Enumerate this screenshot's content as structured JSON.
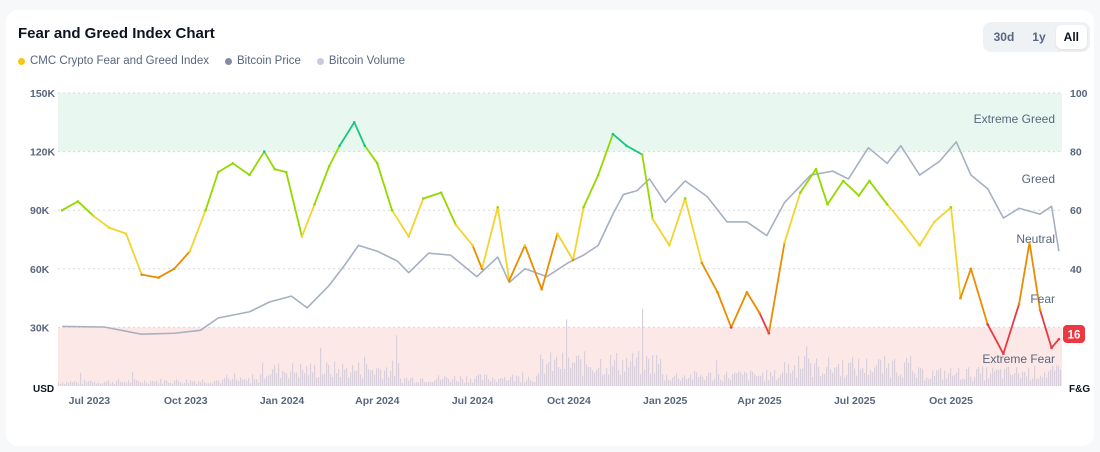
{
  "header": {
    "title": "Fear and Greed Index Chart"
  },
  "legend": [
    {
      "label": "CMC Crypto Fear and Greed Index",
      "color": "#f5c518"
    },
    {
      "label": "Bitcoin Price",
      "color": "#858ca2"
    },
    {
      "label": "Bitcoin Volume",
      "color": "#c7cbe0"
    }
  ],
  "range_buttons": [
    {
      "label": "30d",
      "active": false
    },
    {
      "label": "1y",
      "active": false
    },
    {
      "label": "All",
      "active": true
    }
  ],
  "colors": {
    "extreme_greed_band": "#e8f8f1",
    "extreme_fear_band": "#fde8e8",
    "extreme_fear": "#ea3943",
    "fear": "#ea8c00",
    "neutral": "#f3d42f",
    "greed": "#93d900",
    "extreme_greed": "#16c784",
    "price_line": "#a6b0c3",
    "volume": "#d9d0dc",
    "badge": "#ea3943"
  },
  "chart_data": {
    "type": "line",
    "title": "Fear and Greed Index Chart",
    "x_ticks": [
      "Jul 2023",
      "Oct 2023",
      "Jan 2024",
      "Apr 2024",
      "Jul 2024",
      "Oct 2024",
      "Jan 2025",
      "Apr 2025",
      "Jul 2025",
      "Oct 2025"
    ],
    "x_range": [
      "2023-06",
      "2026-01"
    ],
    "left_axis": {
      "unit_label": "USD",
      "ticks": [
        "150K",
        "120K",
        "90K",
        "60K",
        "30K"
      ],
      "range": [
        0,
        150000
      ]
    },
    "right_axis": {
      "unit_label": "F&G",
      "ticks": [
        "100",
        "80",
        "60",
        "40"
      ],
      "range": [
        0,
        100
      ]
    },
    "zones": [
      {
        "label": "Extreme Greed",
        "from": 80,
        "to": 100
      },
      {
        "label": "Greed",
        "value": 70
      },
      {
        "label": "Neutral",
        "value": 50
      },
      {
        "label": "Fear",
        "value": 30
      },
      {
        "label": "Extreme Fear",
        "from": 0,
        "to": 20
      }
    ],
    "grid": true,
    "current_value": "16",
    "series": [
      {
        "name": "CMC Crypto Fear and Greed Index",
        "axis": "right",
        "points": [
          [
            "2023-06-05",
            60
          ],
          [
            "2023-06-20",
            63
          ],
          [
            "2023-07-05",
            58
          ],
          [
            "2023-07-20",
            54
          ],
          [
            "2023-08-05",
            52
          ],
          [
            "2023-08-20",
            38
          ],
          [
            "2023-09-05",
            37
          ],
          [
            "2023-09-20",
            40
          ],
          [
            "2023-10-05",
            46
          ],
          [
            "2023-10-20",
            60
          ],
          [
            "2023-11-01",
            73
          ],
          [
            "2023-11-15",
            76
          ],
          [
            "2023-12-01",
            72
          ],
          [
            "2023-12-15",
            80
          ],
          [
            "2023-12-25",
            74
          ],
          [
            "2024-01-05",
            73
          ],
          [
            "2024-01-20",
            51
          ],
          [
            "2024-02-01",
            62
          ],
          [
            "2024-02-15",
            75
          ],
          [
            "2024-02-25",
            82
          ],
          [
            "2024-03-10",
            90
          ],
          [
            "2024-03-20",
            82
          ],
          [
            "2024-04-01",
            76
          ],
          [
            "2024-04-15",
            60
          ],
          [
            "2024-05-01",
            51
          ],
          [
            "2024-05-15",
            64
          ],
          [
            "2024-06-01",
            66
          ],
          [
            "2024-06-15",
            55
          ],
          [
            "2024-07-01",
            48
          ],
          [
            "2024-07-10",
            40
          ],
          [
            "2024-07-25",
            61
          ],
          [
            "2024-08-05",
            36
          ],
          [
            "2024-08-20",
            48
          ],
          [
            "2024-09-05",
            33
          ],
          [
            "2024-09-20",
            52
          ],
          [
            "2024-10-05",
            43
          ],
          [
            "2024-10-15",
            61
          ],
          [
            "2024-10-29",
            72
          ],
          [
            "2024-11-12",
            86
          ],
          [
            "2024-11-25",
            82
          ],
          [
            "2024-12-10",
            79
          ],
          [
            "2024-12-20",
            57
          ],
          [
            "2025-01-05",
            48
          ],
          [
            "2025-01-20",
            64
          ],
          [
            "2025-02-05",
            42
          ],
          [
            "2025-02-20",
            32
          ],
          [
            "2025-03-05",
            20
          ],
          [
            "2025-03-20",
            32
          ],
          [
            "2025-04-01",
            25
          ],
          [
            "2025-04-10",
            18
          ],
          [
            "2025-04-25",
            49
          ],
          [
            "2025-05-10",
            66
          ],
          [
            "2025-05-25",
            74
          ],
          [
            "2025-06-05",
            62
          ],
          [
            "2025-06-20",
            70
          ],
          [
            "2025-07-05",
            65
          ],
          [
            "2025-07-15",
            70
          ],
          [
            "2025-08-01",
            62
          ],
          [
            "2025-08-15",
            56
          ],
          [
            "2025-09-01",
            48
          ],
          [
            "2025-09-15",
            56
          ],
          [
            "2025-10-01",
            61
          ],
          [
            "2025-10-10",
            30
          ],
          [
            "2025-10-20",
            40
          ],
          [
            "2025-11-05",
            21
          ],
          [
            "2025-11-20",
            11
          ],
          [
            "2025-12-05",
            28
          ],
          [
            "2025-12-15",
            49
          ],
          [
            "2025-12-25",
            26
          ],
          [
            "2026-01-05",
            13
          ],
          [
            "2026-01-12",
            16
          ]
        ]
      },
      {
        "name": "Bitcoin Price",
        "axis": "left",
        "points": [
          [
            "2023-06-05",
            30500
          ],
          [
            "2023-07-15",
            30200
          ],
          [
            "2023-08-20",
            26500
          ],
          [
            "2023-09-20",
            27000
          ],
          [
            "2023-10-15",
            28500
          ],
          [
            "2023-11-01",
            34800
          ],
          [
            "2023-12-01",
            38000
          ],
          [
            "2023-12-20",
            43000
          ],
          [
            "2024-01-10",
            46000
          ],
          [
            "2024-01-25",
            40000
          ],
          [
            "2024-02-15",
            51500
          ],
          [
            "2024-03-01",
            62000
          ],
          [
            "2024-03-14",
            72000
          ],
          [
            "2024-04-01",
            69000
          ],
          [
            "2024-04-20",
            64000
          ],
          [
            "2024-05-01",
            58000
          ],
          [
            "2024-05-20",
            68000
          ],
          [
            "2024-06-10",
            67000
          ],
          [
            "2024-07-05",
            56000
          ],
          [
            "2024-07-25",
            66000
          ],
          [
            "2024-08-05",
            53000
          ],
          [
            "2024-08-20",
            60000
          ],
          [
            "2024-09-10",
            56000
          ],
          [
            "2024-09-30",
            63000
          ],
          [
            "2024-10-15",
            67000
          ],
          [
            "2024-10-29",
            72000
          ],
          [
            "2024-11-12",
            88000
          ],
          [
            "2024-11-22",
            98000
          ],
          [
            "2024-12-05",
            100000
          ],
          [
            "2024-12-17",
            106000
          ],
          [
            "2025-01-01",
            94000
          ],
          [
            "2025-01-20",
            105000
          ],
          [
            "2025-02-10",
            97000
          ],
          [
            "2025-03-01",
            84000
          ],
          [
            "2025-03-20",
            84000
          ],
          [
            "2025-04-08",
            77000
          ],
          [
            "2025-04-25",
            94000
          ],
          [
            "2025-05-20",
            108000
          ],
          [
            "2025-06-10",
            110000
          ],
          [
            "2025-06-25",
            106000
          ],
          [
            "2025-07-14",
            122000
          ],
          [
            "2025-08-01",
            114000
          ],
          [
            "2025-08-14",
            123000
          ],
          [
            "2025-09-01",
            108000
          ],
          [
            "2025-09-20",
            115000
          ],
          [
            "2025-10-06",
            125000
          ],
          [
            "2025-10-20",
            108000
          ],
          [
            "2025-11-05",
            101000
          ],
          [
            "2025-11-20",
            86000
          ],
          [
            "2025-12-05",
            91000
          ],
          [
            "2025-12-25",
            88000
          ],
          [
            "2026-01-05",
            92000
          ],
          [
            "2026-01-12",
            69000
          ]
        ]
      }
    ]
  }
}
